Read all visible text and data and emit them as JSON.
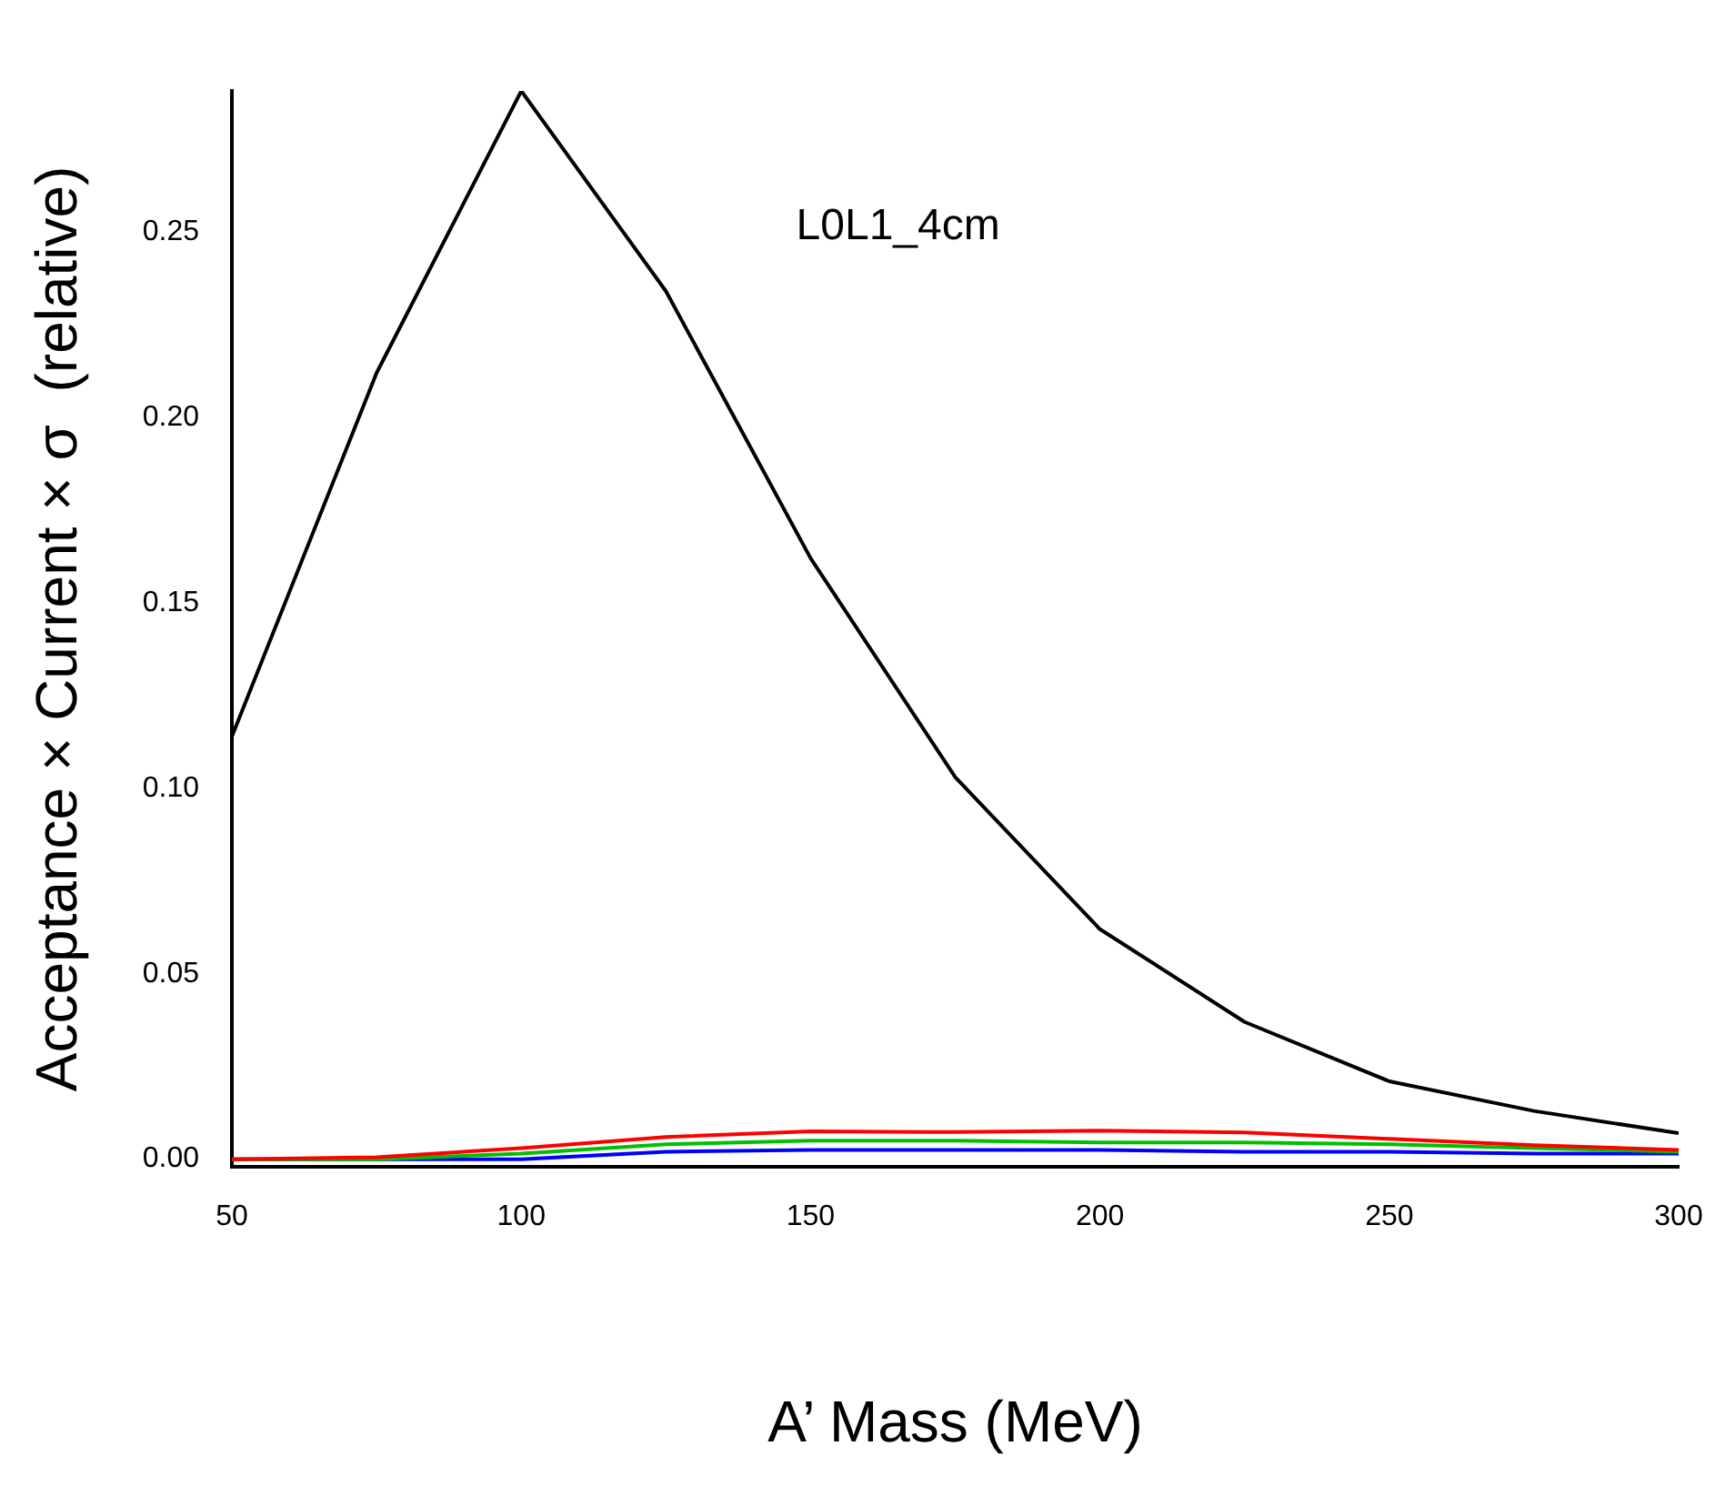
{
  "chart_data": {
    "type": "line",
    "xlabel": "A’ Mass (MeV)",
    "ylabel": "Acceptance × Current × σ  (relative)",
    "annotations": [
      "L0L1_4cm"
    ],
    "x": [
      50,
      75,
      100,
      125,
      150,
      175,
      200,
      225,
      250,
      275,
      300
    ],
    "series": [
      {
        "color": "#000000",
        "values": [
          0.114,
          0.212,
          0.288,
          0.234,
          0.162,
          0.103,
          0.062,
          0.037,
          0.021,
          0.013,
          0.007
        ]
      },
      {
        "color": "#ff0000",
        "values": [
          0,
          0.0005,
          0.003,
          0.006,
          0.0075,
          0.0073,
          0.0077,
          0.0072,
          0.0055,
          0.0038,
          0.0025
        ]
      },
      {
        "color": "#00c000",
        "values": [
          0,
          0,
          0.0015,
          0.004,
          0.005,
          0.005,
          0.0045,
          0.0045,
          0.004,
          0.003,
          0.002
        ]
      },
      {
        "color": "#0000ff",
        "values": [
          0,
          0,
          0,
          0.002,
          0.0025,
          0.0025,
          0.0025,
          0.002,
          0.002,
          0.0015,
          0.0015
        ]
      }
    ],
    "xlim": [
      50,
      300
    ],
    "xticks": [
      50,
      100,
      150,
      200,
      250,
      300
    ],
    "ylim": [
      -0.002,
      0.288
    ],
    "yticks": [
      {
        "value": 0,
        "label": "0.00"
      },
      0.05,
      {
        "value": 0.1,
        "label": "0.10"
      },
      0.15,
      {
        "value": 0.2,
        "label": "0.20"
      },
      0.25
    ],
    "grid": false,
    "legend": false,
    "marker": "none",
    "line_style": "solid"
  }
}
